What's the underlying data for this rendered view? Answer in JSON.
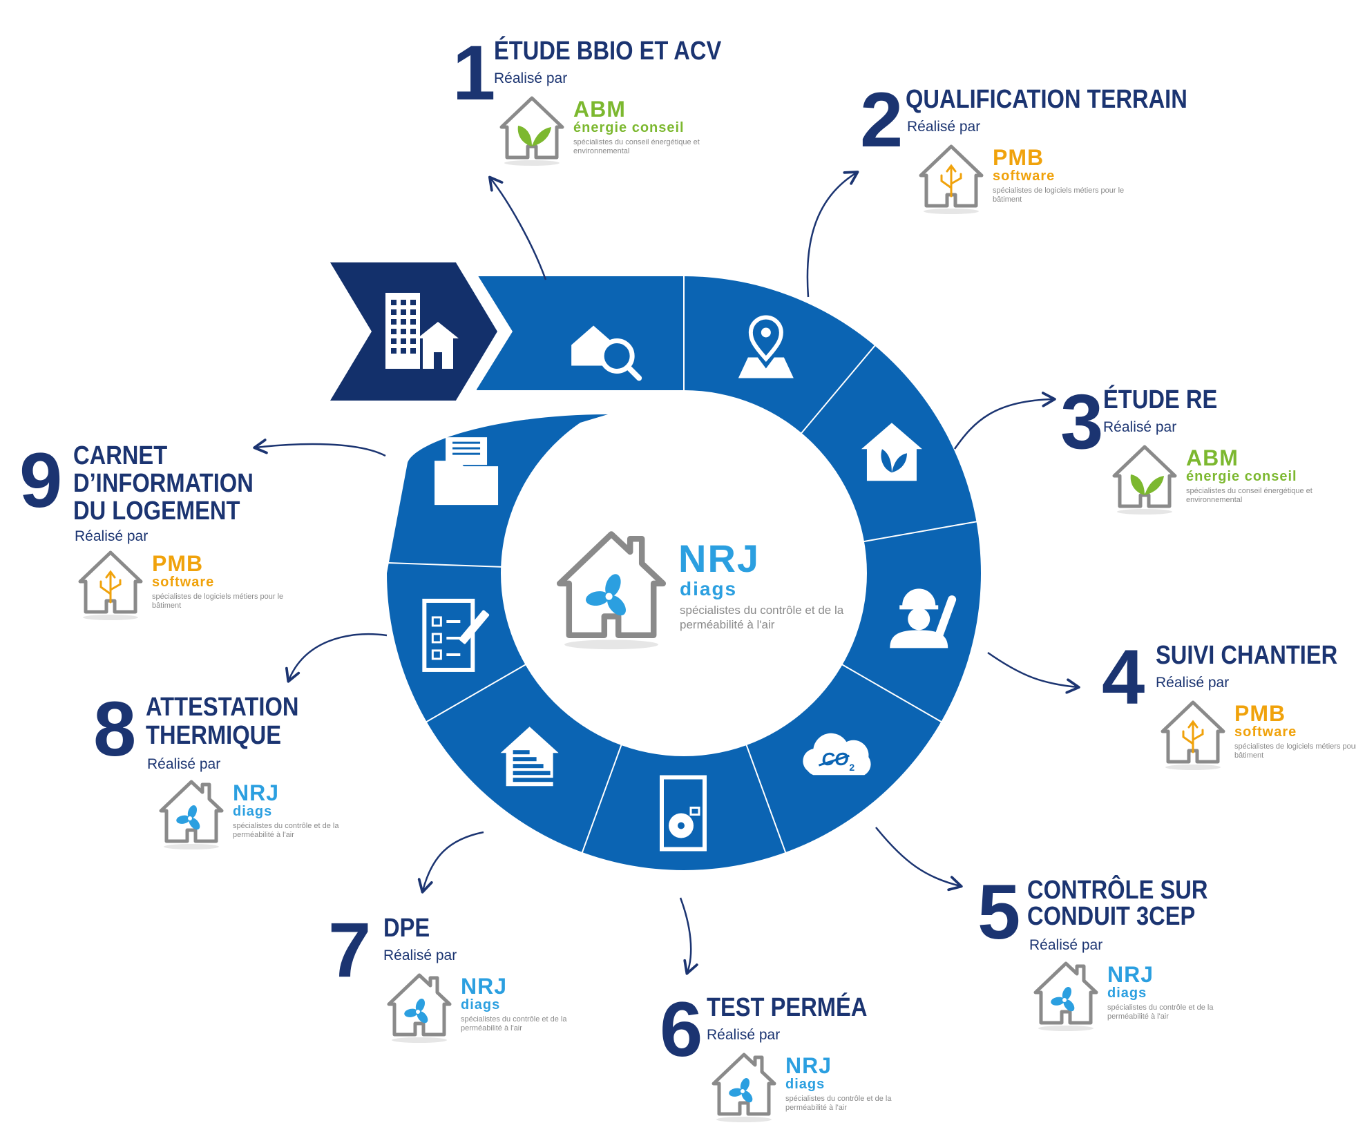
{
  "colors": {
    "ring": "#0b64b3",
    "dark": "#13306b",
    "text": "#1b3471",
    "abm_green": "#7cb82f",
    "pmb_orange": "#f0a20b",
    "nrj_blue": "#2b9fe0",
    "grey": "#8a8a8a"
  },
  "center": {
    "brand": "NRJ",
    "sub": "diags",
    "desc": "spécialistes du contrôle et de la perméabilité à l'air"
  },
  "companies": {
    "abm": {
      "brand": "ABM",
      "sub": "énergie conseil",
      "desc": "spécialistes du conseil énergétique et environnemental",
      "icon": "leaf-icon"
    },
    "pmb": {
      "brand": "PMB",
      "sub": "software",
      "desc": "spécialistes de logiciels métiers pour le bâtiment",
      "icon": "usb-icon"
    },
    "nrj": {
      "brand": "NRJ",
      "sub": "diags",
      "desc": "spécialistes du contrôle et de la perméabilité à l'air",
      "icon": "fan-icon"
    }
  },
  "realise_par": "Réalisé par",
  "steps": [
    {
      "num": "1",
      "title": "ÉTUDE BBIO ET ACV",
      "company": "abm",
      "segment_icon": "house-search-icon"
    },
    {
      "num": "2",
      "title": "QUALIFICATION TERRAIN",
      "company": "pmb",
      "segment_icon": "map-pin-icon"
    },
    {
      "num": "3",
      "title": "ÉTUDE RE",
      "company": "abm",
      "segment_icon": "eco-house-icon"
    },
    {
      "num": "4",
      "title": "SUIVI CHANTIER",
      "company": "pmb",
      "segment_icon": "worker-icon"
    },
    {
      "num": "5",
      "title": "CONTRÔLE SUR CONDUIT 3CEP",
      "title_lines": [
        "CONTRÔLE SUR",
        "CONDUIT 3CEP"
      ],
      "company": "nrj",
      "segment_icon": "co2-cloud-icon"
    },
    {
      "num": "6",
      "title": "TEST PERMÉA",
      "company": "nrj",
      "segment_icon": "door-fan-icon"
    },
    {
      "num": "7",
      "title": "DPE",
      "company": "nrj",
      "segment_icon": "energy-label-icon"
    },
    {
      "num": "8",
      "title": "ATTESTATION THERMIQUE",
      "title_lines": [
        "ATTESTATION",
        "THERMIQUE"
      ],
      "company": "nrj",
      "segment_icon": "checklist-icon"
    },
    {
      "num": "9",
      "title": "CARNET D'INFORMATION DU LOGEMENT",
      "title_lines": [
        "CARNET",
        "D’INFORMATION",
        "DU LOGEMENT"
      ],
      "company": "pmb",
      "segment_icon": "folder-icon"
    }
  ],
  "start_icon": "buildings-icon"
}
